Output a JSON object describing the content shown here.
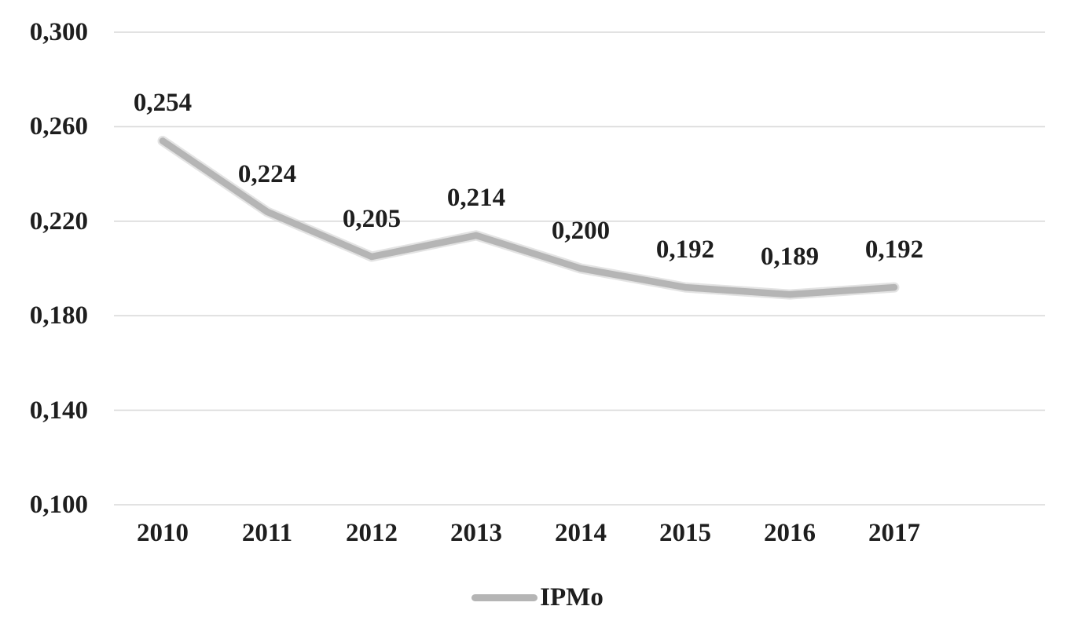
{
  "chart": {
    "line_color": "#b5b5b5",
    "line_halo_color": "#cccccc",
    "gridline_color": "#d9d9d9",
    "text_color": "#1e1e1e",
    "legend": {
      "label": "IPMo"
    }
  },
  "chart_data": {
    "type": "line",
    "title": "",
    "categories": [
      "2010",
      "2011",
      "2012",
      "2013",
      "2014",
      "2015",
      "2016",
      "2017"
    ],
    "series": [
      {
        "name": "IPMo",
        "values": [
          0.254,
          0.224,
          0.205,
          0.214,
          0.2,
          0.192,
          0.189,
          0.192
        ]
      }
    ],
    "data_labels": [
      "0,254",
      "0,224",
      "0,205",
      "0,214",
      "0,200",
      "0,192",
      "0,189",
      "0,192"
    ],
    "y_ticks": [
      "0,300",
      "0,260",
      "0,220",
      "0,180",
      "0,140",
      "0,100"
    ],
    "y_tick_values": [
      0.3,
      0.26,
      0.22,
      0.18,
      0.14,
      0.1
    ],
    "ylim": [
      0.1,
      0.3
    ],
    "grid": true,
    "legend_position": "bottom",
    "decimal_style": "comma"
  }
}
